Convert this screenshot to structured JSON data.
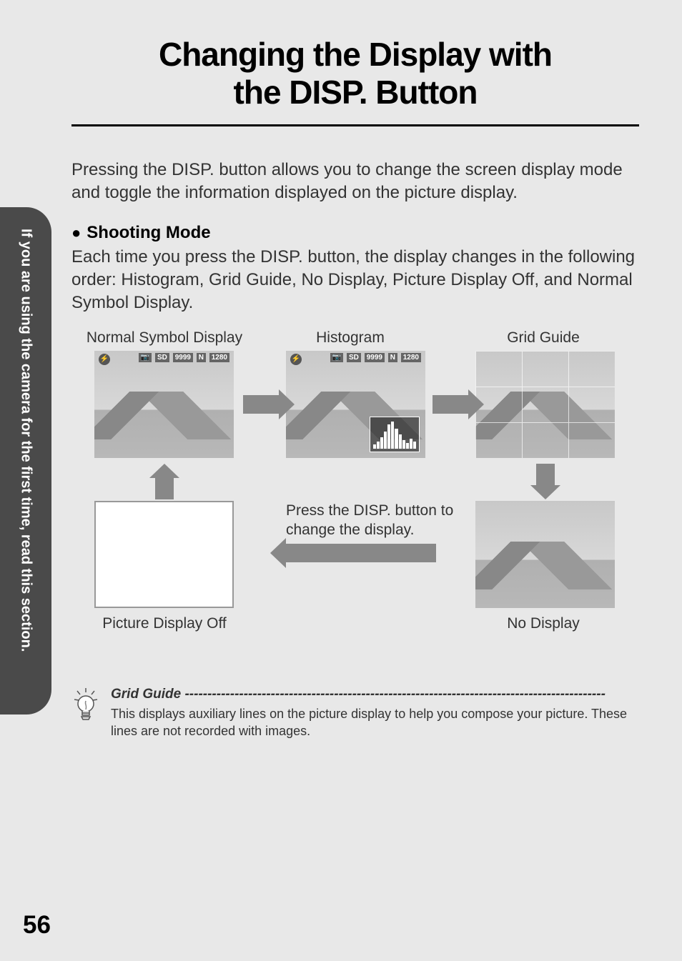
{
  "page_number": "56",
  "side_tab": "If you are using the camera for the first time, read this section.",
  "main_title_line1": "Changing the Display with",
  "main_title_line2": "the DISP. Button",
  "intro": "Pressing the DISP. button allows you to change the screen display mode and toggle the information displayed on the picture display.",
  "section_heading": "Shooting Mode",
  "body": "Each time you press the DISP. button, the display changes in the following order: Histogram, Grid Guide, No Display, Picture Display Off, and Normal Symbol Display.",
  "labels": {
    "normal": "Normal Symbol Display",
    "histogram": "Histogram",
    "grid": "Grid Guide",
    "picture_off": "Picture Display Off",
    "no_display": "No Display"
  },
  "disp_note": "Press the DISP. button to change the display.",
  "osd": {
    "shots": "9999",
    "size": "1280",
    "quality": "N",
    "sd": "SD"
  },
  "tip": {
    "title": "Grid Guide",
    "dashes": " ---------------------------------------------------------------------------------------------",
    "body": "This displays auxiliary lines on the picture display to help you compose your picture. These lines are not recorded with images."
  },
  "histogram_bars": [
    15,
    25,
    40,
    60,
    85,
    95,
    70,
    50,
    30,
    20,
    35,
    25
  ],
  "colors": {
    "page_bg": "#e8e8e8",
    "tab_bg": "#4a4a4a",
    "arrow": "#888888"
  }
}
